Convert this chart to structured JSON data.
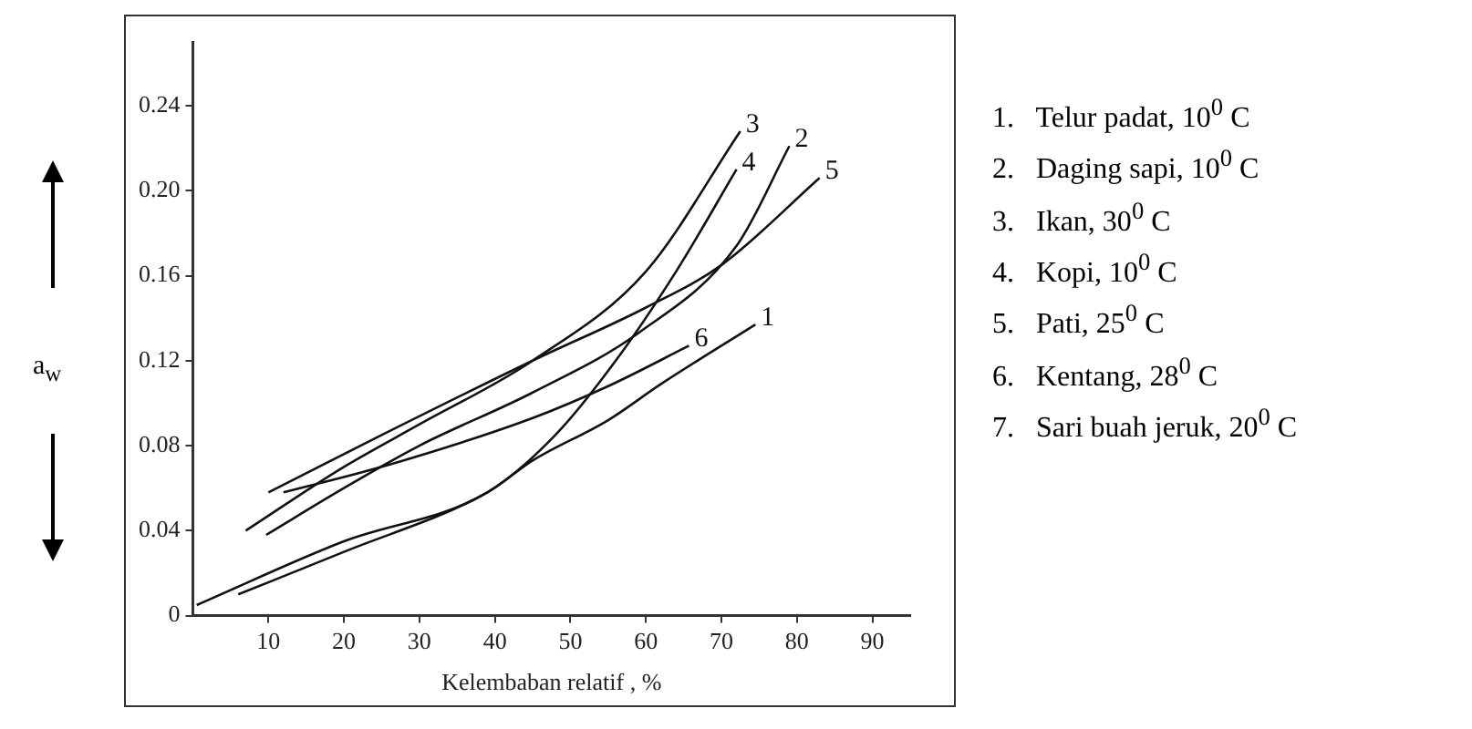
{
  "chart_data": {
    "type": "line",
    "xlabel": "Kelembaban relatif , %",
    "ylabel": "a$_{w}$",
    "xlim": [
      0,
      95
    ],
    "ylim": [
      0,
      0.27
    ],
    "xticks": [
      10,
      20,
      30,
      40,
      50,
      60,
      70,
      80,
      90
    ],
    "yticks": [
      0,
      0.04,
      0.08,
      0.12,
      0.16,
      {
        "value": 0.2,
        "label": "0.20"
      },
      0.24
    ],
    "grid": false,
    "legend": false,
    "marker": "none",
    "line_style": "solid",
    "series": [
      {
        "name": "1",
        "color": "#111111",
        "x": [
          6,
          20,
          39,
          45,
          55,
          62,
          74.5
        ],
        "values": [
          0.01,
          0.03,
          0.058,
          0.073,
          0.092,
          0.109,
          0.137
        ]
      },
      {
        "name": "2",
        "color": "#111111",
        "x": [
          9.7,
          20,
          30,
          45,
          59,
          72,
          79
        ],
        "values": [
          0.038,
          0.06,
          0.08,
          0.105,
          0.133,
          0.174,
          0.221
        ]
      },
      {
        "name": "3",
        "color": "#111111",
        "x": [
          7,
          20,
          30,
          45,
          60,
          72.5
        ],
        "values": [
          0.04,
          0.07,
          0.09,
          0.12,
          0.162,
          0.228
        ]
      },
      {
        "name": "4",
        "color": "#111111",
        "x": [
          0.5,
          20,
          39,
          48,
          56,
          64,
          72
        ],
        "values": [
          0.005,
          0.035,
          0.058,
          0.085,
          0.12,
          0.162,
          0.21
        ]
      },
      {
        "name": "5",
        "color": "#111111",
        "x": [
          10,
          25,
          45,
          60,
          70,
          83
        ],
        "values": [
          0.058,
          0.085,
          0.12,
          0.145,
          0.165,
          0.206
        ]
      },
      {
        "name": "6",
        "color": "#111111",
        "x": [
          12,
          25,
          45,
          55,
          65.7
        ],
        "values": [
          0.058,
          0.07,
          0.093,
          0.108,
          0.127
        ]
      }
    ],
    "annotations": [
      "1.   Telur padat, 10$^{0}$ C",
      "2.   Daging sapi, 10$^{0}$ C",
      "3.   Ikan, 30$^{0}$ C",
      "4.   Kopi, 10$^{0}$ C",
      "5.   Pati, 25$^{0}$ C",
      "6.   Kentang, 28$^{0}$ C",
      "7.   Sari buah jeruk, 20$^{0}$ C"
    ]
  }
}
